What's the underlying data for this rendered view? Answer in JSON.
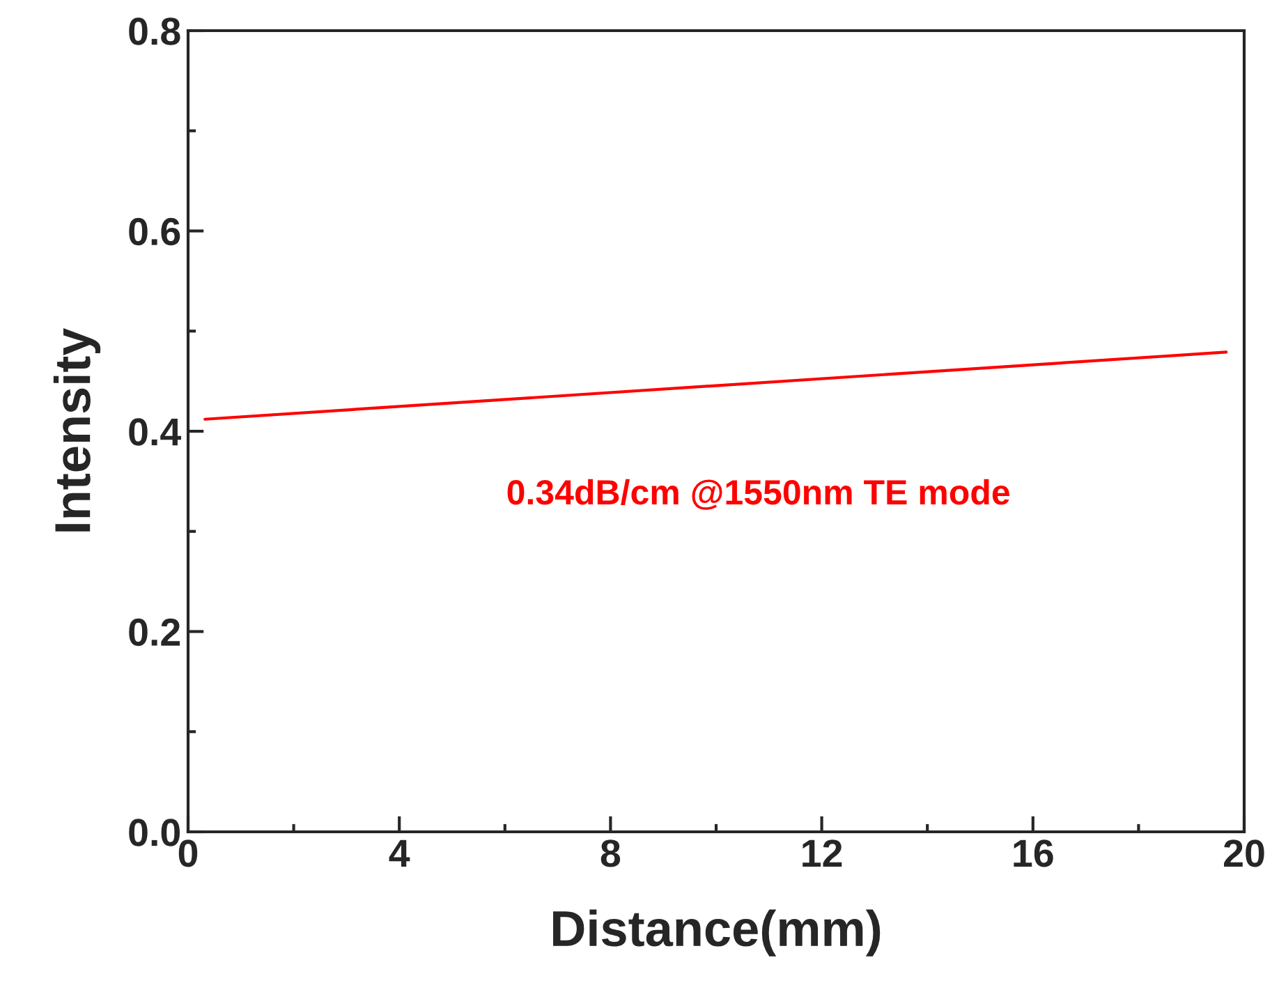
{
  "chart_data": {
    "type": "line",
    "xlabel": "Distance(mm)",
    "ylabel": "Intensity",
    "series": [
      {
        "color": "#ff0000",
        "x": [
          0.32,
          19.66
        ],
        "values": [
          0.412,
          0.479
        ]
      }
    ],
    "xlim": [
      0,
      20
    ],
    "xticks": [
      0,
      4,
      8,
      12,
      16,
      20
    ],
    "ylim": [
      0,
      0.8
    ],
    "yticks": [
      {
        "value": 0,
        "label": "0.0"
      },
      0.2,
      0.4,
      0.6,
      0.8
    ],
    "annotations": [
      "0.34dB/cm @1550nm TE mode"
    ],
    "grid": false,
    "legend": false,
    "marker": "none",
    "line_style": "solid"
  }
}
